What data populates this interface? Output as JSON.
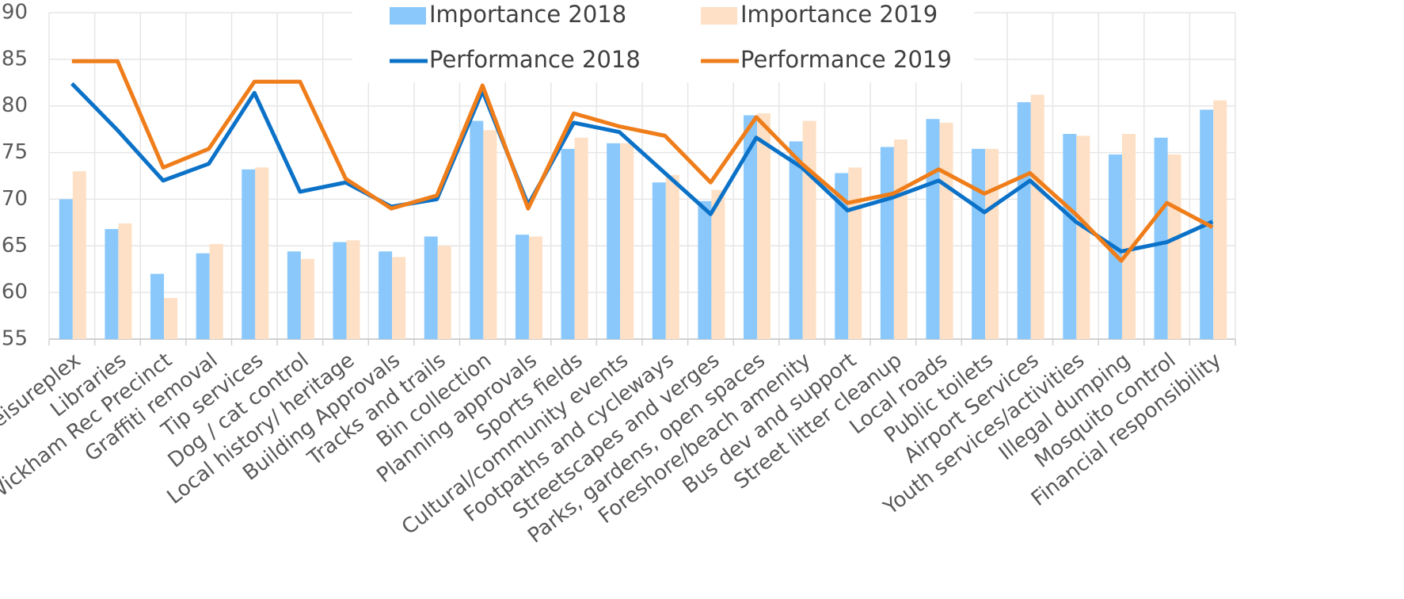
{
  "chart_data": {
    "type": "bar_line",
    "categories": [
      "a Leisureplex",
      "Libraries",
      "Wickham Rec Precinct",
      "Graffiti removal",
      "Tip services",
      "Dog / cat control",
      "Local history/ heritage",
      "Building Approvals",
      "Tracks and trails",
      "Bin collection",
      "Planning approvals",
      "Sports fields",
      "Cultural/community events",
      "Footpaths and cycleways",
      "Streetscapes and verges",
      "Parks, gardens, open spaces",
      "Foreshore/beach amenity",
      "Bus dev and support",
      "Street litter cleanup",
      "Local roads",
      "Public toilets",
      "Airport Services",
      "Youth services/activities",
      "Illegal dumping",
      "Mosquito control",
      "Financial responsibility"
    ],
    "series": [
      {
        "name": "Importance 2018",
        "type": "bar",
        "color": "#8ac8fb",
        "values": [
          70,
          66.8,
          62,
          64.2,
          73.2,
          64.4,
          65.4,
          64.4,
          66,
          78.4,
          66.2,
          75.4,
          76,
          71.8,
          69.8,
          79,
          76.2,
          72.8,
          75.6,
          78.6,
          75.4,
          80.4,
          77,
          74.8,
          76.6,
          79.6
        ]
      },
      {
        "name": "Importance 2019",
        "type": "bar",
        "color": "#fde0c5",
        "values": [
          73,
          67.4,
          59.4,
          65.2,
          73.4,
          63.6,
          65.6,
          63.8,
          65,
          77.4,
          66,
          76.6,
          76,
          72.6,
          71,
          79.2,
          78.4,
          73.4,
          76.4,
          78.2,
          75.4,
          81.2,
          76.8,
          77,
          74.8,
          80.6
        ]
      },
      {
        "name": "Performance 2018",
        "type": "line",
        "color": "#0b72c8",
        "values": [
          82.4,
          77.4,
          72,
          73.8,
          81.4,
          70.8,
          71.8,
          69.2,
          70,
          81.6,
          69.4,
          78.2,
          77.2,
          72.8,
          68.4,
          76.6,
          73.4,
          68.8,
          70.2,
          72,
          68.6,
          72,
          67.6,
          64.4,
          65.4,
          67.6
        ]
      },
      {
        "name": "Performance 2019",
        "type": "line",
        "color": "#ef7d1a",
        "values": [
          84.8,
          84.8,
          73.4,
          75.4,
          82.6,
          82.6,
          72.2,
          69,
          70.4,
          82.2,
          69,
          79.2,
          77.8,
          76.8,
          71.8,
          78.8,
          73.8,
          69.6,
          70.6,
          73.2,
          70.6,
          72.8,
          68.4,
          63.4,
          69.6,
          67
        ]
      }
    ],
    "ylim": [
      55,
      90
    ],
    "yticks": [
      55,
      60,
      65,
      70,
      75,
      80,
      85,
      90
    ],
    "grid": true,
    "legend": "top"
  }
}
